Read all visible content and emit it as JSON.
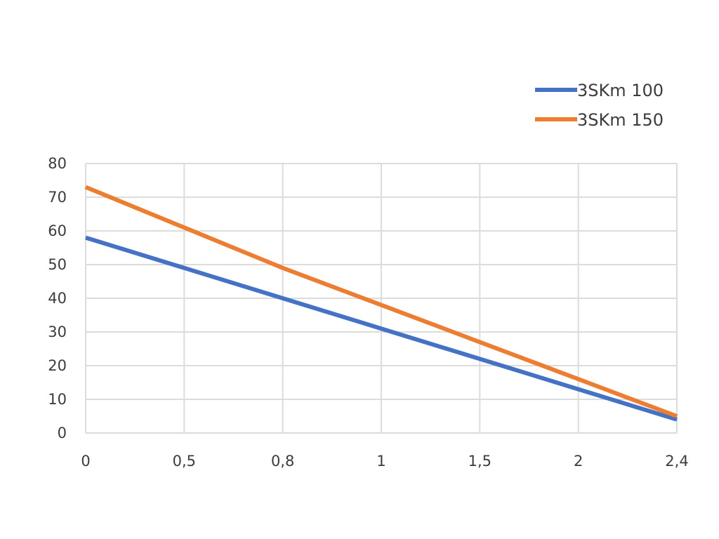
{
  "chart_data": {
    "type": "line",
    "title": "",
    "xlabel": "",
    "ylabel": "",
    "x_categories": [
      "0",
      "0,5",
      "0,8",
      "1",
      "1,5",
      "2",
      "2,4"
    ],
    "y_ticks": [
      "0",
      "10",
      "20",
      "30",
      "40",
      "50",
      "60",
      "70",
      "80"
    ],
    "ylim": [
      0,
      80
    ],
    "grid": true,
    "legend_position": "top-right",
    "series": [
      {
        "name": "3SKm 100",
        "color": "#4472C4",
        "values": [
          58,
          49,
          40,
          31,
          22,
          13,
          4
        ]
      },
      {
        "name": "3SKm 150",
        "color": "#ED7D31",
        "values": [
          73,
          61,
          49,
          38,
          27,
          16,
          5
        ]
      }
    ]
  }
}
